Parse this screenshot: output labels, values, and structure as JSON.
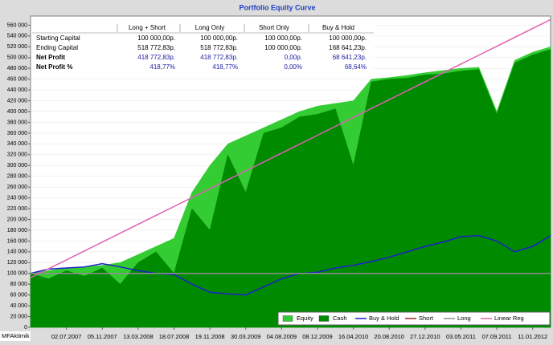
{
  "chart_data": {
    "type": "area",
    "title": "Portfolio Equity Curve",
    "watermark": "MFAktimik",
    "categories": [
      null,
      null,
      "02.07.2007",
      null,
      "05.11.2007",
      null,
      "13.03.2008",
      null,
      "18.07.2008",
      null,
      "19.11.2008",
      null,
      "30.03.2009",
      null,
      "04.08.2009",
      null,
      "08.12.2009",
      null,
      "16.04.2010",
      null,
      "20.08.2010",
      null,
      "27.12.2010",
      null,
      "03.05.2011",
      null,
      "07.09.2011",
      null,
      "11.01.2012",
      null
    ],
    "series": [
      {
        "name": "Equity",
        "style": "area",
        "color": "#33cc33",
        "values": [
          100000,
          105000,
          110000,
          112000,
          115000,
          120000,
          135000,
          150000,
          165000,
          250000,
          300000,
          340000,
          355000,
          370000,
          385000,
          400000,
          410000,
          415000,
          420000,
          460000,
          463000,
          467000,
          472000,
          476000,
          480000,
          482000,
          400000,
          495000,
          510000,
          520000
        ]
      },
      {
        "name": "Cash",
        "style": "area",
        "color": "#008a00",
        "values": [
          100000,
          90000,
          105000,
          95000,
          110000,
          80000,
          120000,
          140000,
          100000,
          220000,
          180000,
          320000,
          250000,
          360000,
          370000,
          390000,
          395000,
          405000,
          300000,
          455000,
          460000,
          462000,
          468000,
          470000,
          475000,
          478000,
          395000,
          490000,
          505000,
          515000
        ]
      },
      {
        "name": "Buy & Hold",
        "style": "line",
        "color": "#1f1fc8",
        "values": [
          100000,
          108000,
          110000,
          112000,
          118000,
          112000,
          105000,
          100000,
          98000,
          80000,
          65000,
          62000,
          60000,
          75000,
          90000,
          100000,
          102000,
          110000,
          115000,
          122000,
          130000,
          140000,
          150000,
          158000,
          168000,
          170000,
          160000,
          140000,
          150000,
          170000
        ]
      },
      {
        "name": "Short",
        "style": "line",
        "color": "#a02828",
        "values": [
          100000,
          100000,
          100000,
          100000,
          100000,
          100000,
          100000,
          100000,
          100000,
          100000,
          100000,
          100000,
          100000,
          100000,
          100000,
          100000,
          100000,
          100000,
          100000,
          100000,
          100000,
          100000,
          100000,
          100000,
          100000,
          100000,
          100000,
          100000,
          100000,
          100000
        ]
      },
      {
        "name": "Long",
        "style": "line",
        "color": "#909090",
        "values": [
          100000,
          100000,
          100000,
          100000,
          100000,
          100000,
          100000,
          100000,
          100000,
          100000,
          100000,
          100000,
          100000,
          100000,
          100000,
          100000,
          100000,
          100000,
          100000,
          100000,
          100000,
          100000,
          100000,
          100000,
          100000,
          100000,
          100000,
          100000,
          100000,
          100000
        ]
      },
      {
        "name": "Linear Reg",
        "style": "line",
        "color": "#e060b0",
        "values": [
          92000,
          108500,
          125000,
          141500,
          158000,
          174500,
          191000,
          207500,
          224000,
          240500,
          257000,
          273500,
          290000,
          306500,
          323000,
          339500,
          356000,
          372500,
          389000,
          405500,
          422000,
          438500,
          455000,
          471500,
          488000,
          504500,
          521000,
          537500,
          554000,
          570500
        ]
      }
    ],
    "ylim": [
      0,
      577000
    ],
    "yticks": [
      0,
      {
        "value": 20000,
        "label": "20 000"
      },
      {
        "value": 40000,
        "label": "40 000"
      },
      {
        "value": 60000,
        "label": "60 000"
      },
      {
        "value": 80000,
        "label": "80 000"
      },
      {
        "value": 100000,
        "label": "100 000"
      },
      {
        "value": 120000,
        "label": "120 000"
      },
      {
        "value": 140000,
        "label": "140 000"
      },
      {
        "value": 160000,
        "label": "160 000"
      },
      {
        "value": 180000,
        "label": "180 000"
      },
      {
        "value": 200000,
        "label": "200 000"
      },
      {
        "value": 220000,
        "label": "220 000"
      },
      {
        "value": 240000,
        "label": "240 000"
      },
      {
        "value": 260000,
        "label": "260 000"
      },
      {
        "value": 280000,
        "label": "280 000"
      },
      {
        "value": 300000,
        "label": "300 000"
      },
      {
        "value": 320000,
        "label": "320 000"
      },
      {
        "value": 340000,
        "label": "340 000"
      },
      {
        "value": 360000,
        "label": "360 000"
      },
      {
        "value": 380000,
        "label": "380 000"
      },
      {
        "value": 400000,
        "label": "400 000"
      },
      {
        "value": 420000,
        "label": "420 000"
      },
      {
        "value": 440000,
        "label": "440 000"
      },
      {
        "value": 460000,
        "label": "460 000"
      },
      {
        "value": 480000,
        "label": "480 000"
      },
      {
        "value": 500000,
        "label": "500 000"
      },
      {
        "value": 520000,
        "label": "520 000"
      },
      {
        "value": 540000,
        "label": "540 000"
      },
      {
        "value": 560000,
        "label": "560 000"
      }
    ],
    "grid": true,
    "legend": "bottom-right",
    "table": {
      "columns": [
        "Long + Short",
        "Long Only",
        "Short Only",
        "Buy & Hold"
      ],
      "rows": [
        {
          "label": "Starting Capital",
          "bold": false,
          "cells": [
            "100 000,00р.",
            "100 000,00р.",
            "100 000,00р.",
            "100 000,00р."
          ]
        },
        {
          "label": "Ending Capital",
          "bold": false,
          "cells": [
            "518 772,83р.",
            "518 772,83р.",
            "100 000,00р.",
            "168 641,23р."
          ]
        },
        {
          "label": "Net Profit",
          "bold": true,
          "cells": [
            "418 772,83р.",
            "418 772,83р.",
            "0,00р.",
            "68 641,23р."
          ]
        },
        {
          "label": "Net Profit %",
          "bold": true,
          "cells": [
            "418,77%",
            "418,77%",
            "0,00%",
            "68,64%"
          ]
        }
      ]
    }
  }
}
